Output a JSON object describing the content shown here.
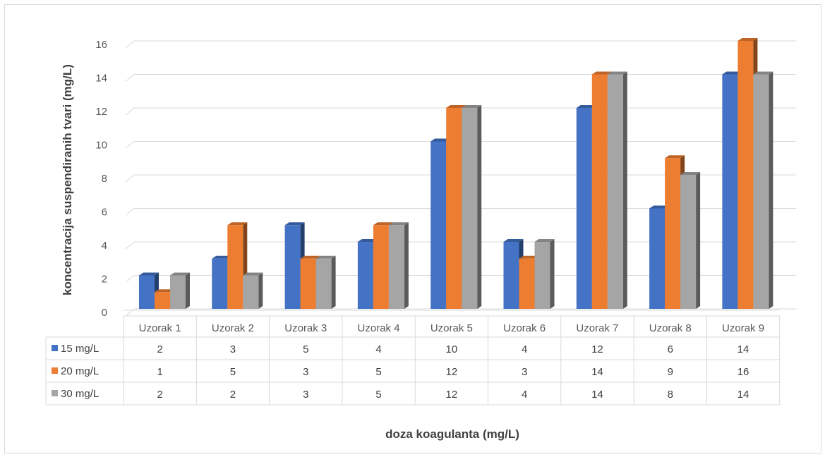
{
  "chart_data": {
    "type": "bar",
    "style": "3d-clustered-column-with-data-table",
    "categories": [
      "Uzorak 1",
      "Uzorak 2",
      "Uzorak 3",
      "Uzorak 4",
      "Uzorak 5",
      "Uzorak 6",
      "Uzorak 7",
      "Uzorak 8",
      "Uzorak 9"
    ],
    "series": [
      {
        "name": "15 mg/L",
        "color": "#4472C4",
        "values": [
          2,
          3,
          5,
          4,
          10,
          4,
          12,
          6,
          14
        ]
      },
      {
        "name": "20 mg/L",
        "color": "#ED7D31",
        "values": [
          1,
          5,
          3,
          5,
          12,
          3,
          14,
          9,
          16
        ]
      },
      {
        "name": "30 mg/L",
        "color": "#A5A5A5",
        "values": [
          2,
          2,
          3,
          5,
          12,
          4,
          14,
          8,
          14
        ]
      }
    ],
    "title": "",
    "xlabel": "doza koagulanta (mg/L)",
    "ylabel": "koncentracija suspendiranih tvari (mg/L)",
    "ylim": [
      0,
      16
    ],
    "yticks": [
      0,
      2,
      4,
      6,
      8,
      10,
      12,
      14,
      16
    ],
    "grid": true,
    "legend": "data-table"
  }
}
